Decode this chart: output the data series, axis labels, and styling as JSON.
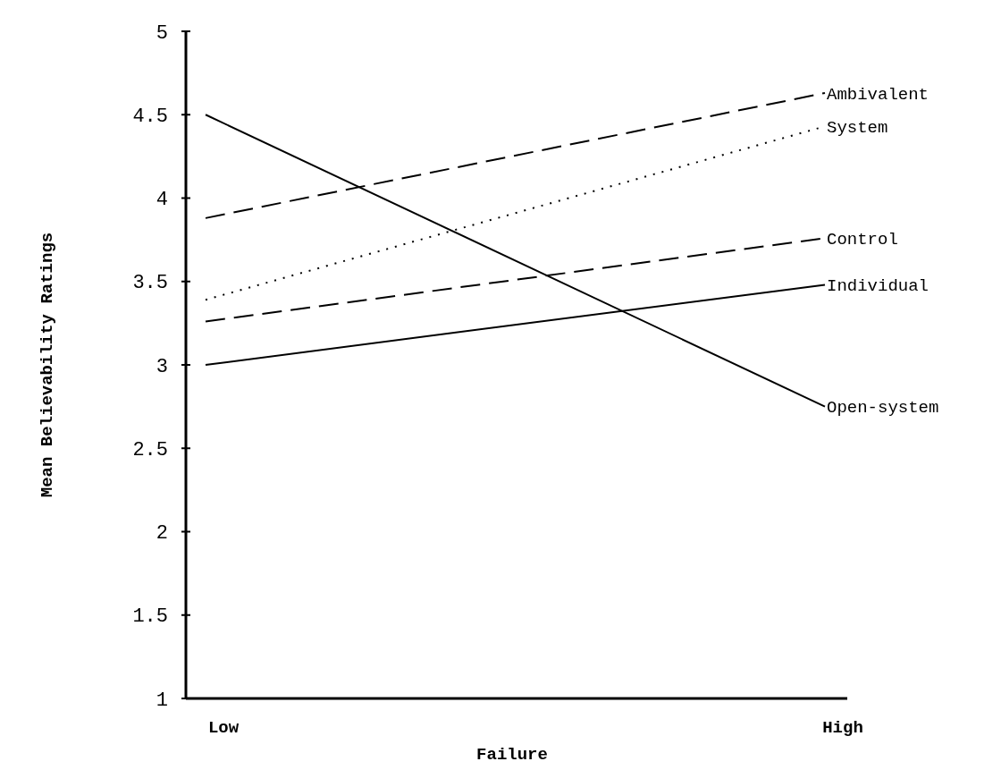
{
  "chart_data": {
    "type": "line",
    "xlabel": "Failure",
    "ylabel": "Mean Believability Ratings",
    "categories": [
      "Low",
      "High"
    ],
    "ylim": [
      1,
      5
    ],
    "yticks": [
      1,
      1.5,
      2,
      2.5,
      3,
      3.5,
      4,
      4.5,
      5
    ],
    "grid": false,
    "marker": "none",
    "series": [
      {
        "name": "Ambivalent",
        "color": "#000000",
        "line_style": "dashed",
        "values": [
          3.88,
          4.63
        ]
      },
      {
        "name": "System",
        "color": "#000000",
        "line_style": "dotted",
        "values": [
          3.39,
          4.43
        ]
      },
      {
        "name": "Control",
        "color": "#000000",
        "line_style": "dashed",
        "values": [
          3.26,
          3.76
        ]
      },
      {
        "name": "Individual",
        "color": "#000000",
        "line_style": "solid",
        "values": [
          3.0,
          3.48
        ]
      },
      {
        "name": "Open-system",
        "color": "#000000",
        "line_style": "solid",
        "values": [
          4.5,
          2.75
        ]
      }
    ]
  }
}
